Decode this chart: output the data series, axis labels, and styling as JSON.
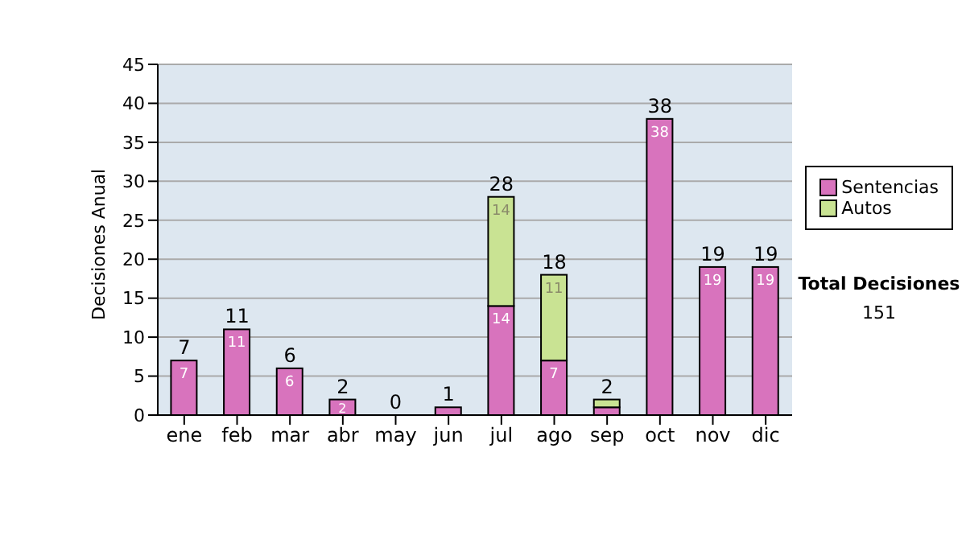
{
  "chart_data": {
    "type": "bar",
    "stacked": true,
    "ylabel": "Decisiones Anual",
    "categories": [
      "ene",
      "feb",
      "mar",
      "abr",
      "may",
      "jun",
      "jul",
      "ago",
      "sep",
      "oct",
      "nov",
      "dic"
    ],
    "series": [
      {
        "name": "Sentencias",
        "color": "#d873bd",
        "values": [
          7,
          11,
          6,
          2,
          0,
          1,
          14,
          7,
          1,
          38,
          19,
          19
        ],
        "value_labels": [
          "7",
          "11",
          "6",
          "2",
          null,
          null,
          "14",
          "7",
          null,
          "38",
          "19",
          "19"
        ]
      },
      {
        "name": "Autos",
        "color": "#c9e393",
        "values": [
          null,
          null,
          null,
          null,
          null,
          null,
          14,
          11,
          1,
          null,
          null,
          null
        ],
        "value_labels": [
          null,
          null,
          null,
          null,
          null,
          null,
          "14",
          "11",
          null,
          null,
          null,
          null
        ]
      }
    ],
    "totals": [
      "7",
      "11",
      "6",
      "2",
      "0",
      "1",
      "28",
      "18",
      "2",
      "38",
      "19",
      "19"
    ],
    "ylim": [
      0,
      45
    ],
    "yticks": [
      0,
      5,
      10,
      15,
      20,
      25,
      30,
      35,
      40,
      45
    ],
    "grid": "y",
    "legend": "right",
    "annotations": [
      "Total Decisiones",
      "151"
    ]
  }
}
